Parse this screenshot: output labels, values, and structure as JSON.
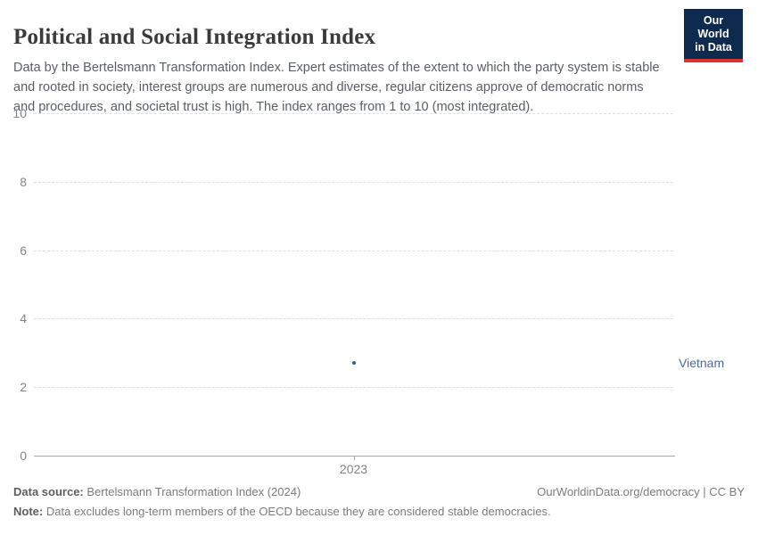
{
  "header": {
    "title": "Political and Social Integration Index",
    "subtitle": "Data by the Bertelsmann Transformation Index. Expert estimates of the extent to which the party system is stable and rooted in society, interest groups are numerous and diverse, regular citizens approve of democratic norms and procedures, and societal trust is high. The index ranges from 1 to 10 (most integrated).",
    "logo": {
      "line1": "Our World",
      "line2": "in Data",
      "bg_color": "#0e2a4e",
      "accent_color": "#d8352e"
    }
  },
  "chart_data": {
    "type": "scatter",
    "title": "Political and Social Integration Index",
    "x": [
      2023
    ],
    "xticks": [
      "2023"
    ],
    "series": [
      {
        "name": "Vietnam",
        "values": [
          2.7
        ]
      }
    ],
    "xlabel": "",
    "ylabel": "",
    "ylim": [
      0,
      10
    ],
    "yticks": [
      0,
      2,
      4,
      6,
      8,
      10
    ],
    "grid": "horizontal-dashed",
    "legend_position": "right-of-point",
    "point_color": "#3d5a88",
    "label_color": "#4c6a9c"
  },
  "footer": {
    "source_label": "Data source:",
    "source_text": "Bertelsmann Transformation Index (2024)",
    "rights": "OurWorldinData.org/democracy | CC BY",
    "note_label": "Note:",
    "note_text": "Data excludes long-term members of the OECD because they are considered stable democracies."
  }
}
